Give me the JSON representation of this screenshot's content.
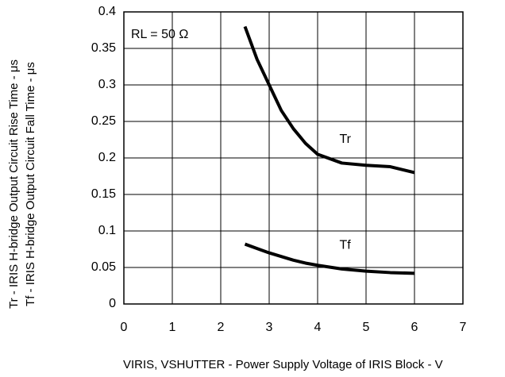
{
  "chart_data": {
    "type": "line",
    "annotation": "RL = 50 Ω",
    "xlabel": "VIRIS, VSHUTTER - Power Supply Voltage of IRIS Block - V",
    "ylabel": [
      "Tr - IRIS H-bridge Output Circuit Rise Time - μs",
      "Tf - IRIS H-bridge Output Circuit Fall Time - μs"
    ],
    "x": [
      2.5,
      2.75,
      3,
      3.25,
      3.5,
      3.75,
      4,
      4.5,
      5,
      5.5,
      6
    ],
    "series": [
      {
        "name": "Tr",
        "color": "#000000",
        "values": [
          0.38,
          0.335,
          0.3,
          0.265,
          0.24,
          0.22,
          0.205,
          0.193,
          0.19,
          0.188,
          0.18
        ]
      },
      {
        "name": "Tf",
        "color": "#000000",
        "values": [
          0.082,
          0.076,
          0.07,
          0.065,
          0.06,
          0.056,
          0.053,
          0.048,
          0.045,
          0.043,
          0.042
        ]
      }
    ],
    "xlim": [
      0,
      7
    ],
    "xticks": [
      0,
      1,
      2,
      3,
      4,
      5,
      6,
      7
    ],
    "ylim": [
      0,
      0.4
    ],
    "yticks": [
      0,
      0.05,
      0.1,
      0.15,
      0.2,
      0.25,
      0.3,
      0.35,
      0.4
    ],
    "grid": true
  }
}
